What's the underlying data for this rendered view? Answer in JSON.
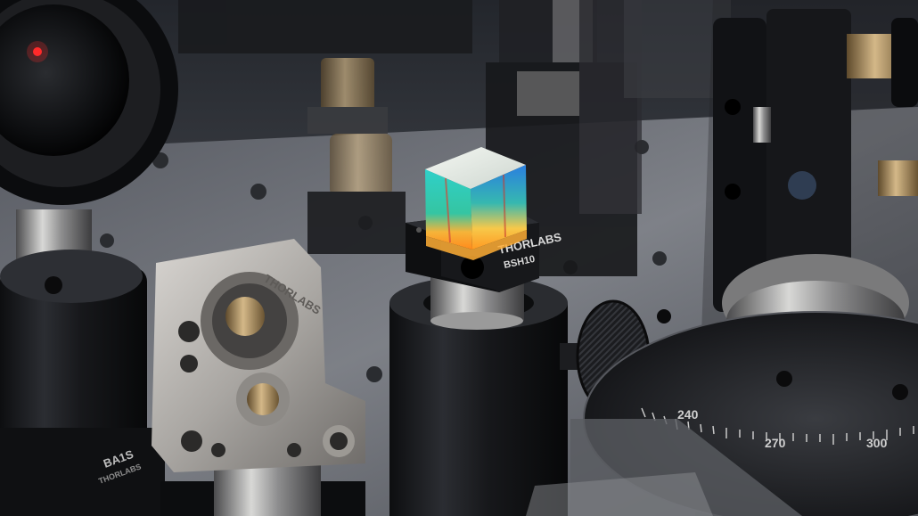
{
  "photo": {
    "subject": "Optical lab bench with beamsplitter cube",
    "cube_mount_brand": "THORLABS",
    "cube_mount_model": "BSH10",
    "mirror_mount_brand": "THORLABS",
    "base_label": "BA1S",
    "base_brand": "THORLABS",
    "rotation_scale": [
      "240",
      "270",
      "300"
    ]
  },
  "colors": {
    "background": "#1a1c20",
    "table_steel": "#7d8088",
    "anodized_black": "#141518",
    "aluminum": "#b9b6b2",
    "brass": "#a88c5e"
  }
}
